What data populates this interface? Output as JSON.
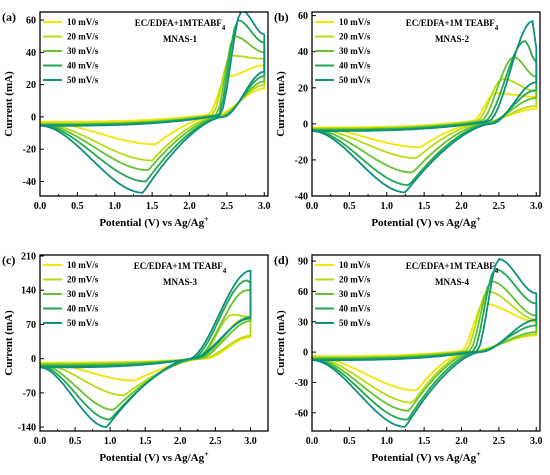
{
  "chart_data": [
    {
      "type": "line",
      "panel": "(a)",
      "title": "EC/EDFA+1MTEABF",
      "title_sub": "4",
      "subtitle": "MNAS-1",
      "xlabel": "Potential (V) vs Ag/Ag",
      "xlabel_sup": "+",
      "ylabel": "Current (mA)",
      "xlim": [
        0.0,
        3.05
      ],
      "ylim": [
        -49,
        65
      ],
      "xticks": [
        "0.0",
        "0.5",
        "1.0",
        "1.5",
        "2.0",
        "2.5",
        "3.0"
      ],
      "yticks": [
        "-40",
        "-20",
        "0",
        "20",
        "40",
        "60"
      ],
      "legend": "top-left",
      "series": [
        {
          "name": "10 mV/s",
          "color": "#f5e400",
          "values": {
            "anodic_end": 32,
            "anodic_peak_x": 2.5,
            "anodic_peak": 25,
            "cathodic_min_x": 1.55,
            "cathodic_min": -17,
            "start": -3,
            "return_x": 2.25
          }
        },
        {
          "name": "20 mV/s",
          "color": "#b5dc10",
          "values": {
            "anodic_end": 36,
            "anodic_peak_x": 2.55,
            "anodic_peak": 38,
            "cathodic_min_x": 1.5,
            "cathodic_min": -27,
            "start": -4,
            "return_x": 2.3
          }
        },
        {
          "name": "30 mV/s",
          "color": "#64c42e",
          "values": {
            "anodic_end": 40,
            "anodic_peak_x": 2.6,
            "anodic_peak": 50,
            "cathodic_min_x": 1.45,
            "cathodic_min": -33,
            "start": -4.5,
            "return_x": 2.35
          }
        },
        {
          "name": "40 mV/s",
          "color": "#23a84e",
          "values": {
            "anodic_end": 46,
            "anodic_peak_x": 2.65,
            "anodic_peak": 60,
            "cathodic_min_x": 1.42,
            "cathodic_min": -40,
            "start": -5,
            "return_x": 2.38
          }
        },
        {
          "name": "50 mV/s",
          "color": "#0e9080",
          "values": {
            "anodic_end": 51,
            "anodic_peak_x": 2.7,
            "anodic_peak": 66,
            "cathodic_min_x": 1.38,
            "cathodic_min": -47,
            "start": -5.5,
            "return_x": 2.4
          }
        }
      ]
    },
    {
      "type": "line",
      "panel": "(b)",
      "title": "EC/EDFA+1M TEABF",
      "title_sub": "4",
      "subtitle": "MNAS-2",
      "xlabel": "Potential (V) vs Ag/Ag",
      "xlabel_sup": "+",
      "ylabel": "Current (mA)",
      "xlim": [
        0.0,
        3.05
      ],
      "ylim": [
        -40,
        62
      ],
      "xticks": [
        "0.0",
        "0.5",
        "1.0",
        "1.5",
        "2.0",
        "2.5",
        "3.0"
      ],
      "yticks": [
        "-40",
        "-20",
        "0",
        "20",
        "40",
        "60"
      ],
      "legend": "top-left",
      "series": [
        {
          "name": "10 mV/s",
          "color": "#f5e400",
          "values": {
            "anodic_end": 15,
            "anodic_peak_x": 2.45,
            "anodic_peak": 17,
            "cathodic_min_x": 1.45,
            "cathodic_min": -13,
            "start": -2,
            "return_x": 2.15
          }
        },
        {
          "name": "20 mV/s",
          "color": "#b5dc10",
          "values": {
            "anodic_end": 18,
            "anodic_peak_x": 2.55,
            "anodic_peak": 25,
            "cathodic_min_x": 1.4,
            "cathodic_min": -19,
            "start": -2.5,
            "return_x": 2.2
          }
        },
        {
          "name": "30 mV/s",
          "color": "#64c42e",
          "values": {
            "anodic_end": 26,
            "anodic_peak_x": 2.7,
            "anodic_peak": 37,
            "cathodic_min_x": 1.35,
            "cathodic_min": -27,
            "start": -3,
            "return_x": 2.25
          }
        },
        {
          "name": "40 mV/s",
          "color": "#23a84e",
          "values": {
            "anodic_end": 34,
            "anodic_peak_x": 2.85,
            "anodic_peak": 46,
            "cathodic_min_x": 1.3,
            "cathodic_min": -34,
            "start": -3.5,
            "return_x": 2.3
          }
        },
        {
          "name": "50 mV/s",
          "color": "#0e9080",
          "values": {
            "anodic_end": 42,
            "anodic_peak_x": 2.95,
            "anodic_peak": 57,
            "cathodic_min_x": 1.25,
            "cathodic_min": -38,
            "start": -4,
            "return_x": 2.35
          }
        }
      ]
    },
    {
      "type": "line",
      "panel": "(c)",
      "title": "EC/EDFA+1M TEABF",
      "title_sub": "4",
      "subtitle": "MNAS-3",
      "xlabel": "Potential (V) vs Ag/Ag",
      "xlabel_sup": "+",
      "ylabel": "Current (mA)",
      "xlim": [
        0.0,
        3.25
      ],
      "ylim": [
        -148,
        212
      ],
      "xticks": [
        "0.0",
        "0.5",
        "1.0",
        "1.5",
        "2.0",
        "2.5",
        "3.0"
      ],
      "yticks": [
        "-140",
        "-70",
        "0",
        "70",
        "140",
        "210"
      ],
      "legend": "top-left",
      "series": [
        {
          "name": "10 mV/s",
          "color": "#f5e400",
          "values": {
            "anodic_end": 80,
            "anodic_peak_x": 2.9,
            "anodic_peak": 80,
            "cathodic_min_x": 1.35,
            "cathodic_min": -45,
            "start": -8,
            "return_x": 2.3
          }
        },
        {
          "name": "20 mV/s",
          "color": "#b5dc10",
          "values": {
            "anodic_end": 85,
            "anodic_peak_x": 2.75,
            "anodic_peak": 90,
            "cathodic_min_x": 1.2,
            "cathodic_min": -75,
            "start": -10,
            "return_x": 2.25
          }
        },
        {
          "name": "30 mV/s",
          "color": "#64c42e",
          "values": {
            "anodic_end": 140,
            "anodic_peak_x": 2.95,
            "anodic_peak": 140,
            "cathodic_min_x": 1.05,
            "cathodic_min": -105,
            "start": -12,
            "return_x": 2.2
          }
        },
        {
          "name": "40 mV/s",
          "color": "#23a84e",
          "values": {
            "anodic_end": 155,
            "anodic_peak_x": 2.95,
            "anodic_peak": 160,
            "cathodic_min_x": 1.0,
            "cathodic_min": -125,
            "start": -15,
            "return_x": 2.15
          }
        },
        {
          "name": "50 mV/s",
          "color": "#0e9080",
          "values": {
            "anodic_end": 150,
            "anodic_peak_x": 3.0,
            "anodic_peak": 180,
            "cathodic_min_x": 0.95,
            "cathodic_min": -140,
            "start": -18,
            "return_x": 2.1
          }
        }
      ]
    },
    {
      "type": "line",
      "panel": "(d)",
      "title": "EC/EDFA+1M TEABF",
      "title_sub": "4",
      "subtitle": "MNAS-4",
      "xlabel": "Potential (V) vs Ag/Ag",
      "xlabel_sup": "+",
      "ylabel": "Current (mA)",
      "xlim": [
        0.0,
        3.05
      ],
      "ylim": [
        -78,
        96
      ],
      "xticks": [
        "0.0",
        "0.5",
        "1.0",
        "1.5",
        "2.0",
        "2.5",
        "3.0"
      ],
      "yticks": [
        "-60",
        "-30",
        "0",
        "30",
        "60",
        "90"
      ],
      "legend": "top-left",
      "series": [
        {
          "name": "10 mV/s",
          "color": "#f5e400",
          "values": {
            "anodic_end": 30,
            "anodic_peak_x": 2.3,
            "anodic_peak": 48,
            "cathodic_min_x": 1.4,
            "cathodic_min": -38,
            "start": -4,
            "return_x": 2.0
          }
        },
        {
          "name": "20 mV/s",
          "color": "#b5dc10",
          "values": {
            "anodic_end": 32,
            "anodic_peak_x": 2.35,
            "anodic_peak": 60,
            "cathodic_min_x": 1.35,
            "cathodic_min": -50,
            "start": -5,
            "return_x": 2.05
          }
        },
        {
          "name": "30 mV/s",
          "color": "#64c42e",
          "values": {
            "anodic_end": 36,
            "anodic_peak_x": 2.4,
            "anodic_peak": 70,
            "cathodic_min_x": 1.3,
            "cathodic_min": -58,
            "start": -6,
            "return_x": 2.1
          }
        },
        {
          "name": "40 mV/s",
          "color": "#23a84e",
          "values": {
            "anodic_end": 48,
            "anodic_peak_x": 2.45,
            "anodic_peak": 82,
            "cathodic_min_x": 1.28,
            "cathodic_min": -67,
            "start": -7,
            "return_x": 2.15
          }
        },
        {
          "name": "50 mV/s",
          "color": "#0e9080",
          "values": {
            "anodic_end": 58,
            "anodic_peak_x": 2.5,
            "anodic_peak": 92,
            "cathodic_min_x": 1.25,
            "cathodic_min": -74,
            "start": -8,
            "return_x": 2.2
          }
        }
      ]
    }
  ]
}
